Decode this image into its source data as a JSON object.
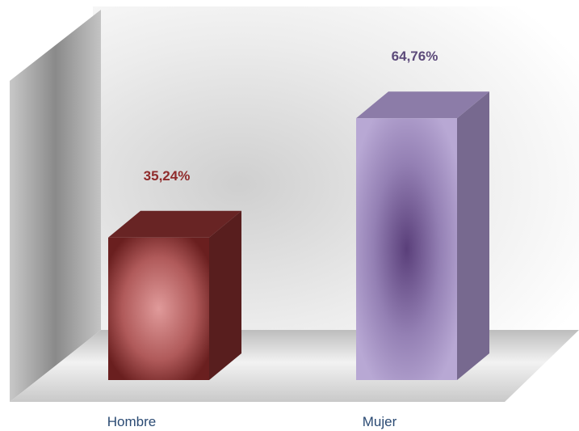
{
  "chart_data": {
    "type": "bar",
    "categories": [
      "Hombre",
      "Mujer"
    ],
    "values": [
      35.24,
      64.76
    ],
    "value_labels": [
      "35,24%",
      "64,76%"
    ],
    "title": "",
    "xlabel": "",
    "ylabel": "",
    "ylim": [
      0,
      70
    ],
    "grid": false,
    "legend": "none",
    "colors": [
      "#7a2a2a",
      "#a592c6"
    ],
    "label_colors": [
      "#8f2b2b",
      "#5c4a7a"
    ]
  }
}
